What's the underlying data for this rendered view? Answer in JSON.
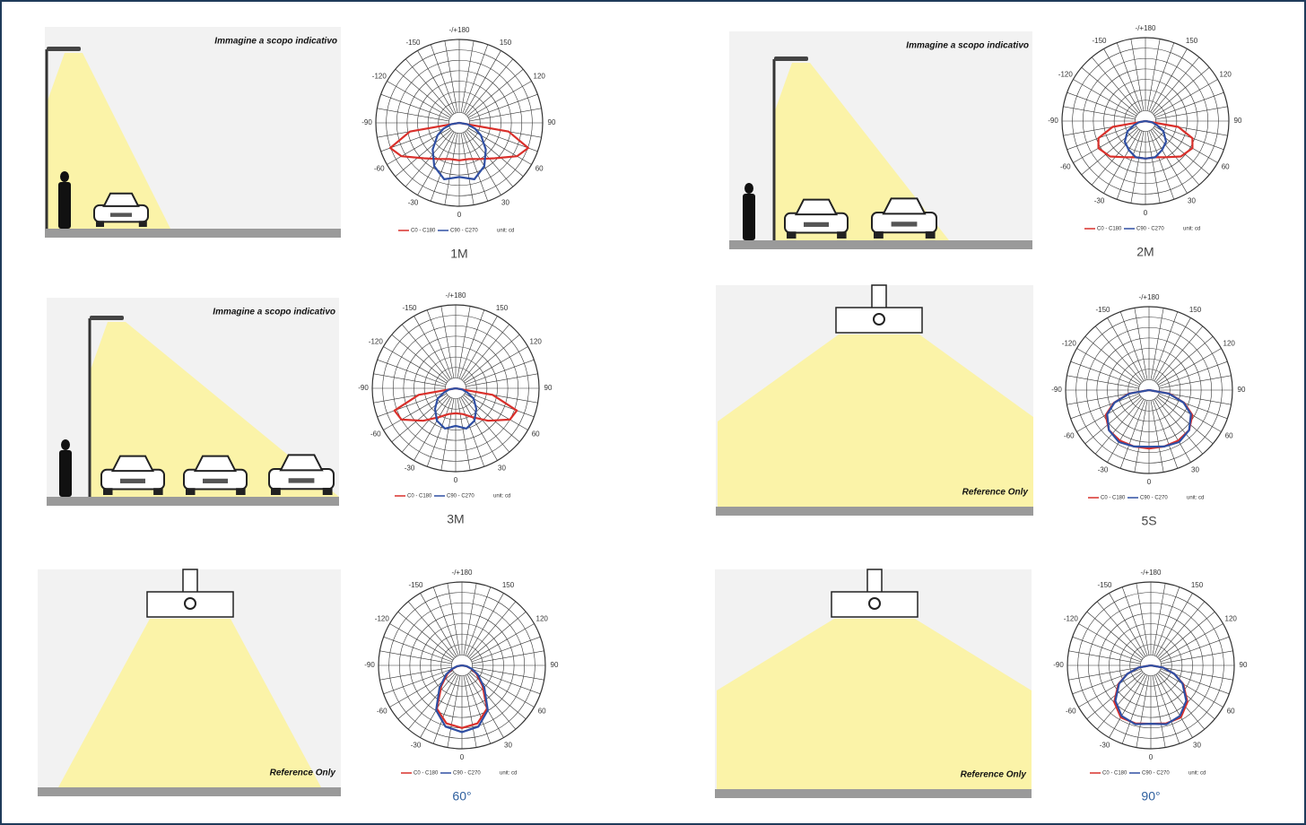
{
  "panels": [
    {
      "illustration_text": "Immagine a scopo indicativo",
      "angle_labels": [
        "-/+180",
        "150",
        "120",
        "90",
        "60",
        "30",
        "0",
        "-30",
        "-60",
        "-90",
        "-120",
        "-150"
      ],
      "legend": [
        "C0 - C180",
        "C90 - C270"
      ],
      "unit": "unit: cd",
      "caption": "1M"
    },
    {
      "illustration_text": "Immagine a scopo indicativo",
      "angle_labels": [
        "-/+180",
        "150",
        "120",
        "90",
        "60",
        "30",
        "0",
        "-30",
        "-60",
        "-90",
        "-120",
        "-150"
      ],
      "legend": [
        "C0 - C180",
        "C90 - C270"
      ],
      "unit": "unit: cd",
      "caption": "2M"
    },
    {
      "illustration_text": "Immagine a scopo indicativo",
      "angle_labels": [
        "-/+180",
        "150",
        "120",
        "90",
        "60",
        "30",
        "0",
        "-30",
        "-60",
        "-90",
        "-120",
        "-150"
      ],
      "legend": [
        "C0 - C180",
        "C90 - C270"
      ],
      "unit": "unit: cd",
      "caption": "3M"
    },
    {
      "illustration_text": "Reference Only",
      "angle_labels": [
        "-/+180",
        "150",
        "120",
        "90",
        "60",
        "30",
        "0",
        "-30",
        "-60",
        "-90",
        "-120",
        "-150"
      ],
      "legend": [
        "C0 - C180",
        "C90 - C270"
      ],
      "unit": "unit: cd",
      "caption": "5S"
    },
    {
      "illustration_text": "Reference Only",
      "angle_labels": [
        "-/+180",
        "150",
        "120",
        "90",
        "60",
        "30",
        "0",
        "-30",
        "-60",
        "-90",
        "-120",
        "-150"
      ],
      "legend": [
        "C0 - C180",
        "C90 - C270"
      ],
      "unit": "unit: cd",
      "caption": "60°"
    },
    {
      "illustration_text": "Reference Only",
      "angle_labels": [
        "-/+180",
        "150",
        "120",
        "90",
        "60",
        "30",
        "0",
        "-30",
        "-60",
        "-90",
        "-120",
        "-150"
      ],
      "legend": [
        "C0 - C180",
        "C90 - C270"
      ],
      "unit": "unit: cd",
      "caption": "90°"
    }
  ]
}
